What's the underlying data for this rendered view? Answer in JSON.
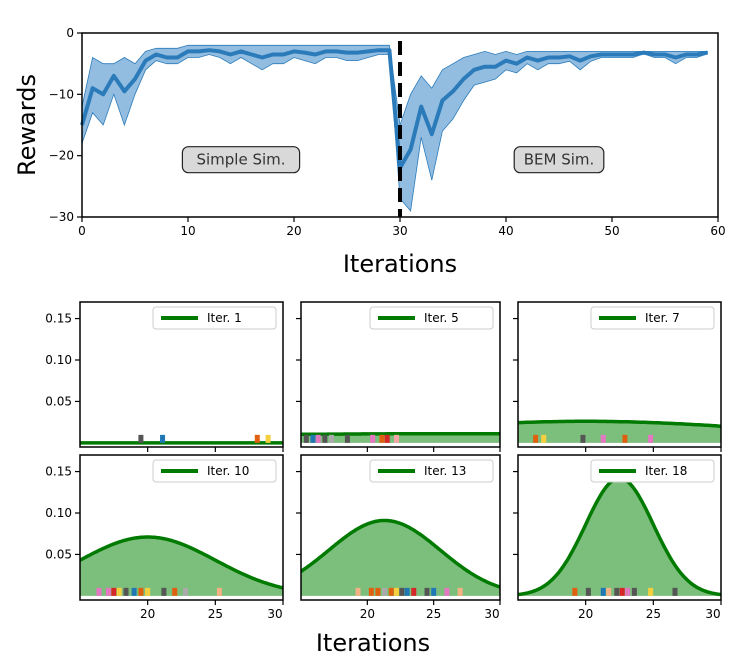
{
  "chart_data": [
    {
      "type": "line",
      "xlabel": "Iterations",
      "ylabel": "Rewards",
      "xlim": [
        0,
        60
      ],
      "ylim": [
        -30,
        0
      ],
      "xticks": [
        0,
        10,
        20,
        30,
        40,
        50,
        60
      ],
      "yticks": [
        0,
        -10,
        -20,
        -30
      ],
      "colors": {
        "line": "#2b7bba",
        "band": "#7fb2db",
        "divider": "#000000"
      },
      "series": [
        {
          "x": [
            0,
            1,
            2,
            3,
            4,
            5,
            6,
            7,
            8,
            9,
            10,
            11,
            12,
            13,
            14,
            15,
            16,
            17,
            18,
            19,
            20,
            21,
            22,
            23,
            24,
            25,
            26,
            27,
            28,
            29,
            30,
            31,
            32,
            33,
            34,
            35,
            36,
            37,
            38,
            39,
            40,
            41,
            42,
            43,
            44,
            45,
            46,
            47,
            48,
            49,
            50,
            51,
            52,
            53,
            54,
            55,
            56,
            57,
            58,
            59
          ],
          "mean": [
            -15,
            -9,
            -10,
            -7,
            -9.5,
            -7.5,
            -4.5,
            -3.5,
            -4,
            -4,
            -3,
            -3,
            -2.8,
            -3,
            -3.5,
            -3,
            -3.5,
            -4,
            -3.5,
            -3.5,
            -3,
            -3.2,
            -3.5,
            -3,
            -3,
            -3.2,
            -3.2,
            -3,
            -2.8,
            -2.8,
            -22,
            -19,
            -12,
            -16.5,
            -11,
            -9.5,
            -7.5,
            -6,
            -5.5,
            -5.5,
            -4.5,
            -5,
            -4,
            -4.5,
            -4,
            -4,
            -3.8,
            -4.5,
            -3.8,
            -3.5,
            -3.5,
            -3.5,
            -3.5,
            -3.2,
            -3.5,
            -3.5,
            -4,
            -3.5,
            -3.5,
            -3.2
          ],
          "upper": [
            -12,
            -4,
            -5,
            -5,
            -4,
            -5,
            -3,
            -2.5,
            -2.5,
            -2.5,
            -2,
            -2,
            -2,
            -2,
            -2,
            -2,
            -2,
            -2,
            -2,
            -2,
            -2,
            -2,
            -2,
            -2,
            -2,
            -2,
            -2,
            -2,
            -2,
            -2,
            -15,
            -10,
            -7,
            -9,
            -6,
            -5,
            -4,
            -3.5,
            -3,
            -3.5,
            -3,
            -3.5,
            -3,
            -3,
            -3,
            -3,
            -3,
            -3,
            -3,
            -3,
            -3,
            -3,
            -3,
            -3,
            -3,
            -3,
            -3,
            -3,
            -3,
            -3
          ],
          "lower": [
            -18,
            -13,
            -15,
            -10,
            -15,
            -10,
            -6,
            -4.5,
            -5,
            -5,
            -4,
            -4,
            -3.5,
            -4,
            -5,
            -4,
            -5,
            -6,
            -5,
            -5,
            -4,
            -4.5,
            -5,
            -4,
            -4,
            -4.5,
            -4.5,
            -4,
            -3.5,
            -3.5,
            -27,
            -29,
            -17,
            -24,
            -16,
            -14,
            -11,
            -8.5,
            -8,
            -7.5,
            -6,
            -6.5,
            -5,
            -6,
            -5,
            -5,
            -4.6,
            -6,
            -4.6,
            -4,
            -4,
            -4,
            -4,
            -3.4,
            -4,
            -4,
            -5,
            -4,
            -4,
            -3.4
          ]
        }
      ],
      "divider_x": 30,
      "annotations": [
        {
          "text": "Simple Sim.",
          "x": 15,
          "y": -20
        },
        {
          "text": "BEM Sim.",
          "x": 45,
          "y": -20
        }
      ]
    },
    {
      "type": "area",
      "layout": "2x3 grid",
      "xlabel": "Iterations",
      "xlim": [
        15,
        30
      ],
      "ylim": [
        -0.005,
        0.17
      ],
      "xticks": [
        20,
        25,
        30
      ],
      "yticks": [
        0.05,
        0.1,
        0.15
      ],
      "ytick_labels": [
        "0.05",
        "0.10",
        "0.15"
      ],
      "colors": {
        "curve": "#007a00",
        "fill": "#7cbf7c"
      },
      "panels": [
        {
          "legend": "Iter. 1",
          "mean": 27,
          "std": 60,
          "peak": 0.0,
          "samples": [
            {
              "x": 19.5,
              "color": "#555555"
            },
            {
              "x": 21.1,
              "color": "#1f77b4"
            },
            {
              "x": 28.1,
              "color": "#e06010"
            },
            {
              "x": 28.9,
              "color": "#f4d03f"
            }
          ]
        },
        {
          "legend": "Iter. 5",
          "mean": 26,
          "std": 30,
          "peak": 0.011,
          "samples": [
            {
              "x": 15.4,
              "color": "#555555"
            },
            {
              "x": 15.9,
              "color": "#1f77b4"
            },
            {
              "x": 16.3,
              "color": "#e377c2"
            },
            {
              "x": 16.8,
              "color": "#555555"
            },
            {
              "x": 17.3,
              "color": "#aaaaaa"
            },
            {
              "x": 18.5,
              "color": "#555555"
            },
            {
              "x": 20.4,
              "color": "#e377c2"
            },
            {
              "x": 21.1,
              "color": "#e06010"
            },
            {
              "x": 21.5,
              "color": "#d62728"
            },
            {
              "x": 22.2,
              "color": "#f4a6a6"
            }
          ]
        },
        {
          "legend": "Iter. 7",
          "mean": 20,
          "std": 14,
          "peak": 0.026,
          "samples": [
            {
              "x": 16.3,
              "color": "#e06010"
            },
            {
              "x": 16.9,
              "color": "#f4d03f"
            },
            {
              "x": 19.8,
              "color": "#555555"
            },
            {
              "x": 21.3,
              "color": "#e377c2"
            },
            {
              "x": 22.9,
              "color": "#e06010"
            },
            {
              "x": 24.8,
              "color": "#e377c2"
            }
          ]
        },
        {
          "legend": "Iter. 10",
          "mean": 20,
          "std": 5,
          "peak": 0.071,
          "samples": [
            {
              "x": 16.4,
              "color": "#e377c2"
            },
            {
              "x": 17.1,
              "color": "#e377c2"
            },
            {
              "x": 17.5,
              "color": "#d62728"
            },
            {
              "x": 17.9,
              "color": "#f4d03f"
            },
            {
              "x": 18.4,
              "color": "#555555"
            },
            {
              "x": 19.0,
              "color": "#1f77b4"
            },
            {
              "x": 19.5,
              "color": "#e06010"
            },
            {
              "x": 20.0,
              "color": "#f4d03f"
            },
            {
              "x": 21.2,
              "color": "#555555"
            },
            {
              "x": 22.0,
              "color": "#e06010"
            },
            {
              "x": 22.8,
              "color": "#aaaaaa"
            },
            {
              "x": 25.3,
              "color": "#f4b183"
            }
          ]
        },
        {
          "legend": "Iter. 13",
          "mean": 21.3,
          "std": 4.2,
          "peak": 0.091,
          "samples": [
            {
              "x": 19.3,
              "color": "#f4b183"
            },
            {
              "x": 20.3,
              "color": "#e06010"
            },
            {
              "x": 20.8,
              "color": "#e06010"
            },
            {
              "x": 21.3,
              "color": "#aaaaaa"
            },
            {
              "x": 21.8,
              "color": "#e06010"
            },
            {
              "x": 22.2,
              "color": "#f4d03f"
            },
            {
              "x": 22.6,
              "color": "#555555"
            },
            {
              "x": 23.0,
              "color": "#1f77b4"
            },
            {
              "x": 23.5,
              "color": "#d62728"
            },
            {
              "x": 24.5,
              "color": "#555555"
            },
            {
              "x": 25.0,
              "color": "#1f77b4"
            },
            {
              "x": 26.0,
              "color": "#e377c2"
            },
            {
              "x": 27.0,
              "color": "#f4b183"
            }
          ]
        },
        {
          "legend": "Iter. 18",
          "mean": 22.5,
          "std": 2.5,
          "peak": 0.142,
          "samples": [
            {
              "x": 19.2,
              "color": "#e06010"
            },
            {
              "x": 20.2,
              "color": "#555555"
            },
            {
              "x": 21.3,
              "color": "#1f77b4"
            },
            {
              "x": 21.7,
              "color": "#f4b183"
            },
            {
              "x": 22.3,
              "color": "#555555"
            },
            {
              "x": 22.7,
              "color": "#d62728"
            },
            {
              "x": 23.1,
              "color": "#e377c2"
            },
            {
              "x": 23.6,
              "color": "#555555"
            },
            {
              "x": 24.8,
              "color": "#f4d03f"
            },
            {
              "x": 26.6,
              "color": "#555555"
            }
          ]
        }
      ]
    }
  ]
}
